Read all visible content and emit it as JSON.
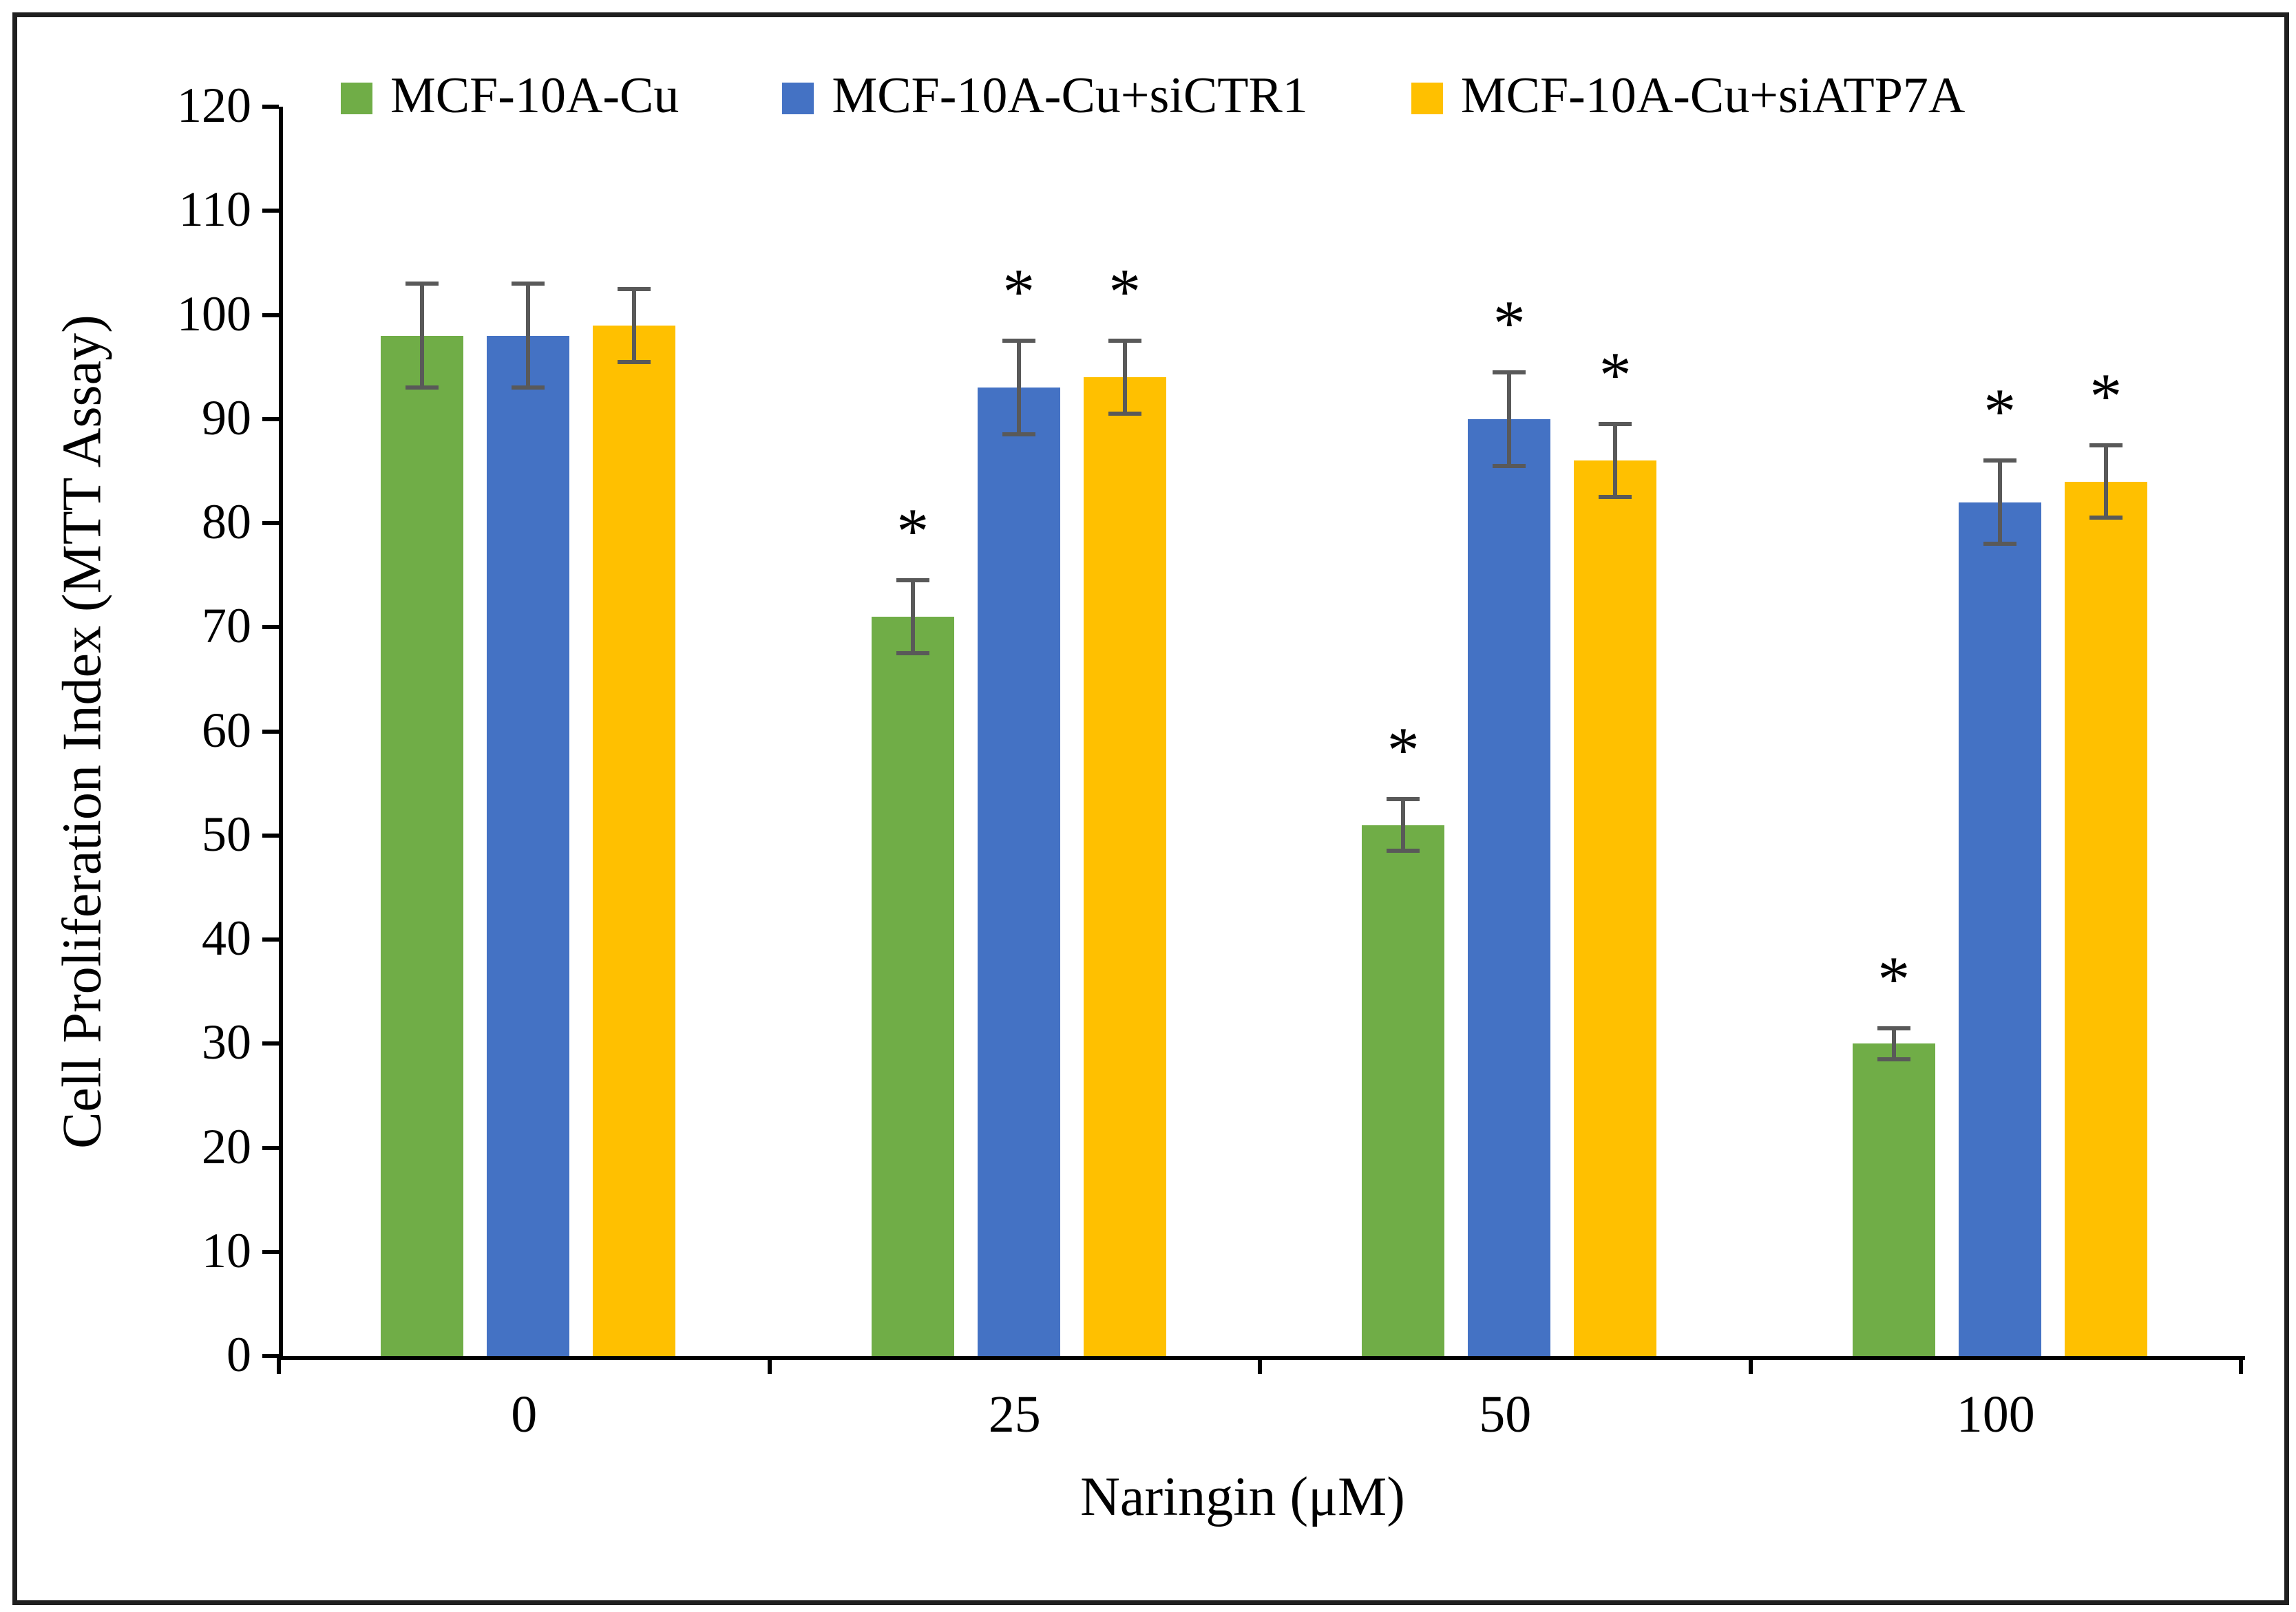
{
  "chart_data": {
    "type": "bar",
    "title": "",
    "xlabel": "Naringin (μM)",
    "ylabel": "Cell Proliferation Index (MTT Assay)",
    "categories": [
      "0",
      "25",
      "50",
      "100"
    ],
    "ylim": [
      0,
      120
    ],
    "ytick_step": 10,
    "grid": false,
    "legend_position": "top",
    "significance_marker": "*",
    "error_bar_color": "#595959",
    "series": [
      {
        "name": "MCF-10A-Cu",
        "color": "#70AD47",
        "values": [
          98,
          71,
          51,
          30
        ],
        "errors": [
          5,
          3.5,
          2.5,
          1.5
        ],
        "significant": [
          false,
          true,
          true,
          true
        ]
      },
      {
        "name": "MCF-10A-Cu+siCTR1",
        "color": "#4472C4",
        "values": [
          98,
          93,
          90,
          82
        ],
        "errors": [
          5,
          4.5,
          4.5,
          4
        ],
        "significant": [
          false,
          true,
          true,
          true
        ]
      },
      {
        "name": "MCF-10A-Cu+siATP7A",
        "color": "#FFC000",
        "values": [
          99,
          94,
          86,
          84
        ],
        "errors": [
          3.5,
          3.5,
          3.5,
          3.5
        ],
        "significant": [
          false,
          true,
          true,
          true
        ]
      }
    ]
  }
}
